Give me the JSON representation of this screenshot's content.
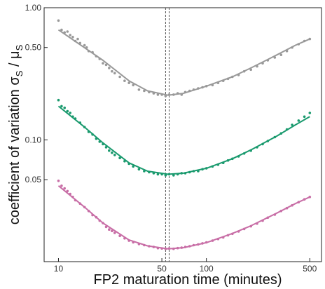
{
  "chart_data": {
    "type": "scatter",
    "title": "",
    "xlabel": "FP2 maturation time (minutes)",
    "ylabel": "coefficient of variation σ",
    "ylabel_sub": "S",
    "ylabel_mid": " / μ",
    "ylabel_sub2": "S",
    "x_scale": "log",
    "y_scale": "log",
    "xlim": [
      8,
      600
    ],
    "ylim": [
      0.012,
      1.0
    ],
    "x_ticks": [
      10,
      50,
      100,
      500
    ],
    "x_tick_labels": [
      "10",
      "50",
      "100",
      "500"
    ],
    "y_ticks": [
      1.0,
      0.5,
      0.1,
      0.05
    ],
    "y_tick_labels": [
      "1.00",
      "0.50",
      "0.10",
      "0.05"
    ],
    "vlines": [
      53,
      56
    ],
    "grid": false,
    "series": [
      {
        "color": "#999999",
        "points": [
          [
            10,
            0.8
          ],
          [
            10.5,
            0.68
          ],
          [
            11,
            0.65
          ],
          [
            11.5,
            0.66
          ],
          [
            12,
            0.62
          ],
          [
            12.5,
            0.6
          ],
          [
            13,
            0.56
          ],
          [
            13.5,
            0.58
          ],
          [
            14,
            0.54
          ],
          [
            15,
            0.52
          ],
          [
            15.5,
            0.5
          ],
          [
            16,
            0.47
          ],
          [
            17,
            0.46
          ],
          [
            18,
            0.43
          ],
          [
            19,
            0.41
          ],
          [
            20,
            0.38
          ],
          [
            21,
            0.37
          ],
          [
            22,
            0.35
          ],
          [
            23,
            0.33
          ],
          [
            24,
            0.32
          ],
          [
            26,
            0.3
          ],
          [
            28,
            0.28
          ],
          [
            30,
            0.27
          ],
          [
            32,
            0.26
          ],
          [
            35,
            0.24
          ],
          [
            38,
            0.235
          ],
          [
            41,
            0.23
          ],
          [
            44,
            0.225
          ],
          [
            47,
            0.22
          ],
          [
            50,
            0.22
          ],
          [
            53,
            0.215
          ],
          [
            56,
            0.22
          ],
          [
            60,
            0.22
          ],
          [
            64,
            0.225
          ],
          [
            68,
            0.22
          ],
          [
            72,
            0.23
          ],
          [
            77,
            0.235
          ],
          [
            82,
            0.24
          ],
          [
            88,
            0.245
          ],
          [
            94,
            0.25
          ],
          [
            100,
            0.255
          ],
          [
            110,
            0.26
          ],
          [
            120,
            0.27
          ],
          [
            130,
            0.28
          ],
          [
            140,
            0.29
          ],
          [
            150,
            0.3
          ],
          [
            165,
            0.31
          ],
          [
            180,
            0.33
          ],
          [
            200,
            0.34
          ],
          [
            220,
            0.36
          ],
          [
            240,
            0.38
          ],
          [
            260,
            0.4
          ],
          [
            290,
            0.42
          ],
          [
            320,
            0.44
          ],
          [
            350,
            0.47
          ],
          [
            380,
            0.5
          ],
          [
            420,
            0.53
          ],
          [
            460,
            0.56
          ],
          [
            500,
            0.58
          ]
        ],
        "fit": [
          [
            10,
            0.68
          ],
          [
            20,
            0.4
          ],
          [
            30,
            0.28
          ],
          [
            40,
            0.235
          ],
          [
            55,
            0.218
          ],
          [
            70,
            0.225
          ],
          [
            100,
            0.255
          ],
          [
            150,
            0.3
          ],
          [
            200,
            0.35
          ],
          [
            300,
            0.44
          ],
          [
            400,
            0.52
          ],
          [
            500,
            0.58
          ]
        ]
      },
      {
        "color": "#1a9a6e",
        "points": [
          [
            10,
            0.2
          ],
          [
            10.5,
            0.18
          ],
          [
            11,
            0.175
          ],
          [
            11.5,
            0.165
          ],
          [
            12,
            0.16
          ],
          [
            12.5,
            0.15
          ],
          [
            13,
            0.145
          ],
          [
            14,
            0.135
          ],
          [
            15,
            0.125
          ],
          [
            16,
            0.115
          ],
          [
            17,
            0.11
          ],
          [
            18,
            0.102
          ],
          [
            19,
            0.097
          ],
          [
            20,
            0.093
          ],
          [
            21,
            0.088
          ],
          [
            22,
            0.083
          ],
          [
            23,
            0.08
          ],
          [
            24,
            0.077
          ],
          [
            26,
            0.073
          ],
          [
            28,
            0.069
          ],
          [
            30,
            0.066
          ],
          [
            32,
            0.063
          ],
          [
            35,
            0.06
          ],
          [
            38,
            0.058
          ],
          [
            41,
            0.057
          ],
          [
            44,
            0.056
          ],
          [
            47,
            0.055
          ],
          [
            50,
            0.055
          ],
          [
            53,
            0.054
          ],
          [
            56,
            0.055
          ],
          [
            60,
            0.054
          ],
          [
            64,
            0.055
          ],
          [
            68,
            0.056
          ],
          [
            72,
            0.056
          ],
          [
            77,
            0.057
          ],
          [
            82,
            0.058
          ],
          [
            88,
            0.058
          ],
          [
            94,
            0.06
          ],
          [
            100,
            0.061
          ],
          [
            110,
            0.063
          ],
          [
            120,
            0.065
          ],
          [
            130,
            0.067
          ],
          [
            140,
            0.07
          ],
          [
            150,
            0.072
          ],
          [
            165,
            0.075
          ],
          [
            180,
            0.079
          ],
          [
            200,
            0.083
          ],
          [
            220,
            0.088
          ],
          [
            240,
            0.093
          ],
          [
            260,
            0.098
          ],
          [
            290,
            0.105
          ],
          [
            320,
            0.112
          ],
          [
            350,
            0.12
          ],
          [
            380,
            0.13
          ],
          [
            420,
            0.14
          ],
          [
            460,
            0.15
          ],
          [
            500,
            0.16
          ]
        ],
        "fit": [
          [
            10,
            0.18
          ],
          [
            15,
            0.125
          ],
          [
            20,
            0.095
          ],
          [
            30,
            0.067
          ],
          [
            40,
            0.058
          ],
          [
            55,
            0.055
          ],
          [
            70,
            0.056
          ],
          [
            100,
            0.061
          ],
          [
            150,
            0.072
          ],
          [
            200,
            0.084
          ],
          [
            300,
            0.107
          ],
          [
            400,
            0.13
          ],
          [
            500,
            0.15
          ]
        ]
      },
      {
        "color": "#c86ea6",
        "points": [
          [
            10,
            0.049
          ],
          [
            10.5,
            0.045
          ],
          [
            11,
            0.043
          ],
          [
            11.5,
            0.041
          ],
          [
            12,
            0.039
          ],
          [
            12.5,
            0.037
          ],
          [
            13,
            0.035
          ],
          [
            14,
            0.033
          ],
          [
            15,
            0.031
          ],
          [
            16,
            0.029
          ],
          [
            17,
            0.027
          ],
          [
            18,
            0.026
          ],
          [
            19,
            0.0245
          ],
          [
            20,
            0.0235
          ],
          [
            21,
            0.022
          ],
          [
            22,
            0.021
          ],
          [
            23,
            0.0205
          ],
          [
            24,
            0.0198
          ],
          [
            26,
            0.0188
          ],
          [
            28,
            0.018
          ],
          [
            30,
            0.0173
          ],
          [
            32,
            0.0168
          ],
          [
            35,
            0.0163
          ],
          [
            38,
            0.016
          ],
          [
            41,
            0.0157
          ],
          [
            44,
            0.0155
          ],
          [
            47,
            0.0152
          ],
          [
            50,
            0.0151
          ],
          [
            53,
            0.015
          ],
          [
            56,
            0.0151
          ],
          [
            60,
            0.015
          ],
          [
            64,
            0.0152
          ],
          [
            68,
            0.0153
          ],
          [
            72,
            0.0155
          ],
          [
            77,
            0.0157
          ],
          [
            82,
            0.016
          ],
          [
            88,
            0.0162
          ],
          [
            94,
            0.0165
          ],
          [
            100,
            0.0168
          ],
          [
            110,
            0.0173
          ],
          [
            120,
            0.0178
          ],
          [
            130,
            0.0183
          ],
          [
            140,
            0.019
          ],
          [
            150,
            0.0195
          ],
          [
            165,
            0.0203
          ],
          [
            180,
            0.0212
          ],
          [
            200,
            0.0222
          ],
          [
            220,
            0.0233
          ],
          [
            240,
            0.0245
          ],
          [
            260,
            0.0258
          ],
          [
            290,
            0.0272
          ],
          [
            320,
            0.029
          ],
          [
            350,
            0.0305
          ],
          [
            380,
            0.032
          ],
          [
            420,
            0.0338
          ],
          [
            460,
            0.0355
          ],
          [
            500,
            0.037
          ]
        ],
        "fit": [
          [
            10,
            0.045
          ],
          [
            15,
            0.031
          ],
          [
            20,
            0.0235
          ],
          [
            30,
            0.0175
          ],
          [
            40,
            0.0158
          ],
          [
            55,
            0.015
          ],
          [
            70,
            0.0153
          ],
          [
            100,
            0.0167
          ],
          [
            150,
            0.0196
          ],
          [
            200,
            0.0224
          ],
          [
            300,
            0.028
          ],
          [
            400,
            0.033
          ],
          [
            500,
            0.037
          ]
        ]
      }
    ]
  }
}
